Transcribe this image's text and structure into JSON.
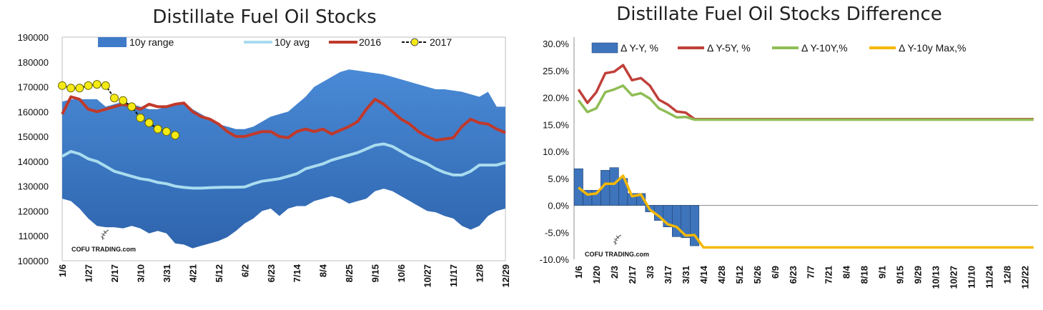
{
  "colors": {
    "band": "#3f7bc8",
    "band_dark": "#2e64ad",
    "avg": "#a9dcef",
    "y2016": "#c0392b",
    "y2017_marker": "#f5ea14",
    "bar": "#3e74bc",
    "line_5y": "#c0403a",
    "line_10y": "#8fbd55",
    "line_max": "#f5b800"
  },
  "logo_text": "COFU TRADING.com",
  "chart_data": [
    {
      "type": "area",
      "title": "Distillate Fuel Oil Stocks",
      "ylim": [
        100000,
        190000
      ],
      "yticks": [
        100000,
        110000,
        120000,
        130000,
        140000,
        150000,
        160000,
        170000,
        180000,
        190000
      ],
      "ytick_labels": [
        "100000",
        "110000",
        "120000",
        "130000",
        "140000",
        "150000",
        "160000",
        "170000",
        "180000",
        "190000"
      ],
      "x_labels": [
        "1/6",
        "1/27",
        "2/17",
        "3/10",
        "3/31",
        "4/21",
        "5/12",
        "6/2",
        "6/23",
        "7/14",
        "8/4",
        "8/25",
        "9/15",
        "10/6",
        "10/27",
        "11/17",
        "12/8",
        "12/29"
      ],
      "legend": {
        "range": "10y range",
        "avg": "10y avg",
        "y2016": "2016",
        "y2017": "2017"
      },
      "week_count": 52,
      "series": [
        {
          "name": "10y range max",
          "values": [
            164000,
            165000,
            165000,
            165000,
            165000,
            162000,
            163000,
            164000,
            163000,
            162000,
            161000,
            161000,
            162000,
            163000,
            164000,
            161000,
            159000,
            157000,
            155000,
            154000,
            153000,
            153000,
            154000,
            156000,
            158000,
            159000,
            160000,
            163000,
            166000,
            170000,
            172000,
            174000,
            176000,
            177000,
            176500,
            176000,
            175500,
            175000,
            174000,
            173000,
            172000,
            171000,
            170000,
            169000,
            169000,
            168500,
            168000,
            167000,
            166000,
            168000,
            162000,
            162000
          ]
        },
        {
          "name": "10y range min",
          "values": [
            125000,
            124000,
            121000,
            117000,
            114000,
            113500,
            113500,
            113000,
            114000,
            113000,
            111000,
            112000,
            111000,
            107000,
            106500,
            105000,
            106000,
            107000,
            108000,
            109500,
            112000,
            115000,
            117000,
            120000,
            121000,
            118000,
            121000,
            122000,
            122000,
            124000,
            125000,
            126000,
            125000,
            123000,
            124000,
            125000,
            128000,
            129000,
            128000,
            126000,
            124000,
            122000,
            120000,
            119500,
            118000,
            117000,
            114000,
            112500,
            114000,
            118000,
            120000,
            121000
          ]
        },
        {
          "name": "10y avg",
          "values": [
            142000,
            144000,
            143000,
            141000,
            140000,
            138000,
            136000,
            135000,
            134000,
            133000,
            132500,
            131500,
            131000,
            130000,
            129500,
            129200,
            129200,
            129400,
            129500,
            129600,
            129600,
            129700,
            131000,
            132000,
            132500,
            133000,
            134000,
            135000,
            137000,
            138000,
            139000,
            140500,
            141500,
            142500,
            143500,
            145000,
            146500,
            147000,
            146000,
            144000,
            142000,
            140500,
            139000,
            137000,
            135500,
            134500,
            134500,
            136000,
            138500,
            138500,
            138500,
            139500
          ]
        },
        {
          "name": "2016",
          "values": [
            159000,
            166000,
            165000,
            161000,
            160000,
            161000,
            162000,
            163000,
            162000,
            161000,
            163000,
            162000,
            162000,
            163000,
            163500,
            160000,
            158000,
            157000,
            155000,
            152000,
            150000,
            150000,
            151000,
            152000,
            152000,
            150000,
            149500,
            152000,
            153000,
            152000,
            153000,
            151000,
            152500,
            154000,
            156000,
            161000,
            165000,
            163000,
            160000,
            157000,
            155000,
            152000,
            150000,
            148500,
            149000,
            149500,
            154000,
            157000,
            155500,
            155000,
            153000,
            151500
          ]
        },
        {
          "name": "2017",
          "values": [
            170500,
            169500,
            169500,
            170500,
            171000,
            170500,
            165500,
            164500,
            162000,
            157500,
            155500,
            153000,
            152000,
            150500
          ]
        }
      ]
    },
    {
      "type": "bar",
      "title": "Distillate Fuel Oil Stocks Difference",
      "ylim": [
        -0.1,
        0.3
      ],
      "yticks": [
        -0.1,
        -0.05,
        0,
        0.05,
        0.1,
        0.15,
        0.2,
        0.25,
        0.3
      ],
      "ytick_labels": [
        "-10.0%",
        "-5.0%",
        "0.0%",
        "5.0%",
        "10.0%",
        "15.0%",
        "20.0%",
        "25.0%",
        "30.0%"
      ],
      "x_labels": [
        "1/6",
        "1/20",
        "2/3",
        "2/17",
        "3/3",
        "3/17",
        "3/31",
        "4/14",
        "4/28",
        "5/12",
        "5/26",
        "6/9",
        "6/23",
        "7/7",
        "7/21",
        "8/4",
        "8/18",
        "9/1",
        "9/15",
        "9/29",
        "10/13",
        "10/27",
        "11/10",
        "11/24",
        "12/8",
        "12/22"
      ],
      "legend": {
        "yy": "Δ Y-Y, %",
        "y5": "Δ Y-5Y, %",
        "y10": "Δ Y-10Y,%",
        "ymax": "Δ Y-10y Max,%"
      },
      "week_count": 52,
      "series": [
        {
          "name": "Δ Y-Y, %",
          "values": [
            0.068,
            0.028,
            0.028,
            0.065,
            0.07,
            0.05,
            0.022,
            0.022,
            -0.012,
            -0.028,
            -0.04,
            -0.058,
            -0.06,
            -0.075
          ]
        },
        {
          "name": "Δ Y-5Y, %",
          "values": [
            0.215,
            0.19,
            0.21,
            0.245,
            0.248,
            0.26,
            0.232,
            0.236,
            0.222,
            0.196,
            0.187,
            0.174,
            0.172,
            0.16,
            0.16,
            0.16,
            0.16,
            0.16,
            0.16,
            0.16,
            0.16,
            0.16,
            0.16,
            0.16,
            0.16,
            0.16,
            0.16,
            0.16,
            0.16,
            0.16,
            0.16,
            0.16,
            0.16,
            0.16,
            0.16,
            0.16,
            0.16,
            0.16,
            0.16,
            0.16,
            0.16,
            0.16,
            0.16,
            0.16,
            0.16,
            0.16,
            0.16,
            0.16,
            0.16,
            0.16,
            0.16,
            0.16
          ]
        },
        {
          "name": "Δ Y-10Y,%",
          "values": [
            0.195,
            0.173,
            0.18,
            0.21,
            0.215,
            0.222,
            0.204,
            0.208,
            0.198,
            0.18,
            0.172,
            0.163,
            0.164,
            0.159,
            0.159,
            0.159,
            0.159,
            0.159,
            0.159,
            0.159,
            0.159,
            0.159,
            0.159,
            0.159,
            0.159,
            0.159,
            0.159,
            0.159,
            0.159,
            0.159,
            0.159,
            0.159,
            0.159,
            0.159,
            0.159,
            0.159,
            0.159,
            0.159,
            0.159,
            0.159,
            0.159,
            0.159,
            0.159,
            0.159,
            0.159,
            0.159,
            0.159,
            0.159,
            0.159,
            0.159,
            0.159,
            0.159
          ]
        },
        {
          "name": "Δ Y-10y Max,%",
          "values": [
            0.033,
            0.02,
            0.022,
            0.04,
            0.04,
            0.055,
            0.017,
            0.02,
            -0.008,
            -0.02,
            -0.035,
            -0.04,
            -0.056,
            -0.055,
            -0.078,
            -0.078,
            -0.078,
            -0.078,
            -0.078,
            -0.078,
            -0.078,
            -0.078,
            -0.078,
            -0.078,
            -0.078,
            -0.078,
            -0.078,
            -0.078,
            -0.078,
            -0.078,
            -0.078,
            -0.078,
            -0.078,
            -0.078,
            -0.078,
            -0.078,
            -0.078,
            -0.078,
            -0.078,
            -0.078,
            -0.078,
            -0.078,
            -0.078,
            -0.078,
            -0.078,
            -0.078,
            -0.078,
            -0.078,
            -0.078,
            -0.078,
            -0.078,
            -0.078
          ]
        }
      ]
    }
  ]
}
